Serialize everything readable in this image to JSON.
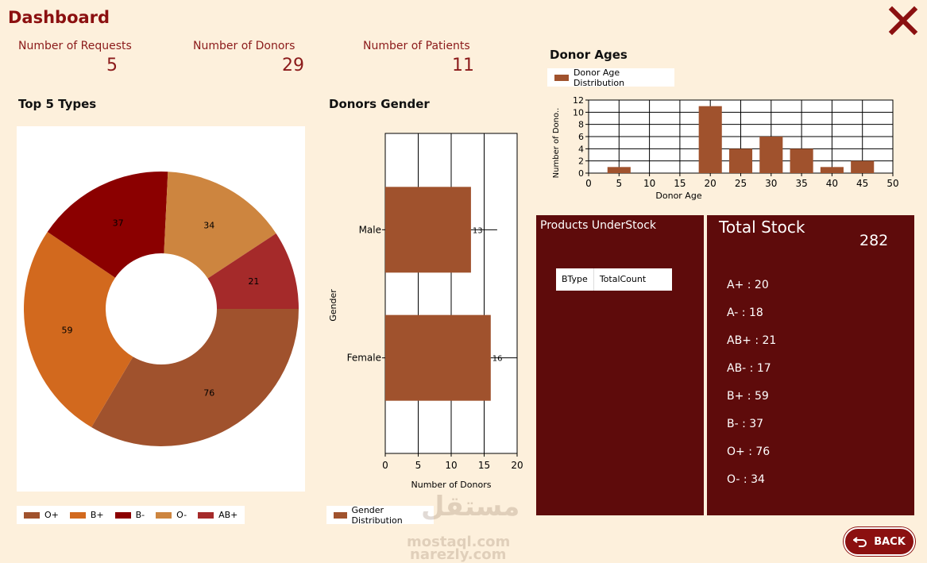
{
  "header": {
    "title": "Dashboard"
  },
  "stats": [
    {
      "label": "Number of Requests",
      "value": "5"
    },
    {
      "label": "Number of Donors",
      "value": "29"
    },
    {
      "label": "Number of Patients",
      "value": "11"
    }
  ],
  "sections": {
    "top_types": "Top 5 Types",
    "donors_gender": "Donors Gender",
    "donor_ages": "Donor Ages"
  },
  "colors": {
    "O+": "#a0522d",
    "B+": "#d2691e",
    "B-": "#8b0000",
    "O-": "#cd853f",
    "AB+": "#a52a2a",
    "panel": "#5e0b0b",
    "accent": "#8b1010"
  },
  "chart_data": [
    {
      "type": "pie",
      "labels": [
        "O+",
        "B+",
        "B-",
        "O-",
        "AB+"
      ],
      "values": [
        76,
        59,
        37,
        34,
        21
      ],
      "legend_position": "bottom"
    },
    {
      "type": "bar",
      "orientation": "horizontal",
      "categories": [
        "Male",
        "Female"
      ],
      "series": [
        {
          "name": "Gender Distribution",
          "values": [
            13,
            16
          ]
        }
      ],
      "xlabel": "Number of Donors",
      "ylabel": "Gender",
      "xlim": [
        0,
        20
      ],
      "xticks": [
        0,
        5,
        10,
        15,
        20
      ],
      "legend_position": "bottom"
    },
    {
      "type": "bar",
      "x": [
        5,
        20,
        25,
        30,
        35,
        40,
        45
      ],
      "series": [
        {
          "name": "Donor Age Distribution",
          "values": [
            1,
            11,
            4,
            6,
            4,
            1,
            2
          ]
        }
      ],
      "xlabel": "Donor Age",
      "ylabel": "Number of Dono..",
      "xlim": [
        0,
        50
      ],
      "ylim": [
        0,
        12
      ],
      "xticks": [
        0,
        5,
        10,
        15,
        20,
        25,
        30,
        35,
        40,
        45,
        50
      ],
      "yticks": [
        0,
        2,
        4,
        6,
        8,
        10,
        12
      ],
      "grid": true,
      "legend_position": "top-left"
    }
  ],
  "products_understock": {
    "title": "Products UnderStock",
    "columns": [
      "BType",
      "TotalCount"
    ]
  },
  "total_stock": {
    "title": "Total Stock",
    "total": "282",
    "items": [
      "A+ : 20",
      "A- : 18",
      "AB+ : 21",
      "AB- : 17",
      "B+ : 59",
      "B- : 37",
      "O+ : 76",
      "O- : 34"
    ]
  },
  "back_button": {
    "label": "BACK"
  },
  "watermark": {
    "line1": "مستقل",
    "line2": "mostaql.com",
    "line3": "narezly.com"
  },
  "icons": {
    "close": "close-x-icon",
    "back": "undo-arrow-icon"
  }
}
